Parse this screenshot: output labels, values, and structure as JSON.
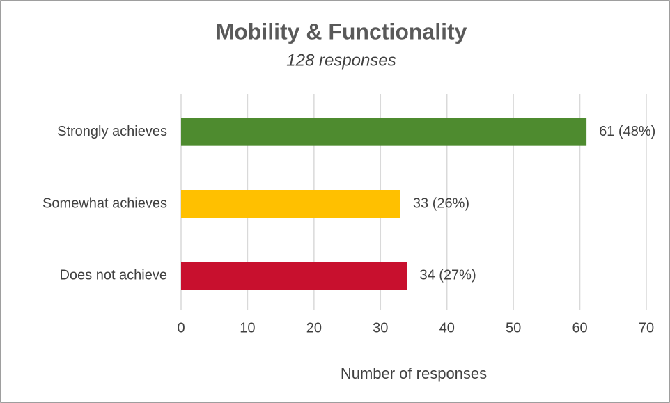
{
  "chart_data": {
    "type": "hbar",
    "title": "Mobility & Functionality",
    "subtitle": "128 responses",
    "categories": [
      "Strongly achieves",
      "Somewhat achieves",
      "Does not achieve"
    ],
    "values": [
      61,
      33,
      34
    ],
    "value_labels": [
      "61 (48%)",
      "33 (26%)",
      "34 (27%)"
    ],
    "colors": [
      "#4e8b2f",
      "#ffc000",
      "#c8102e"
    ],
    "xlabel": "Number of responses",
    "xlim": [
      0,
      70
    ],
    "xticks": [
      0,
      10,
      20,
      30,
      40,
      50,
      60,
      70
    ],
    "grid": true
  }
}
